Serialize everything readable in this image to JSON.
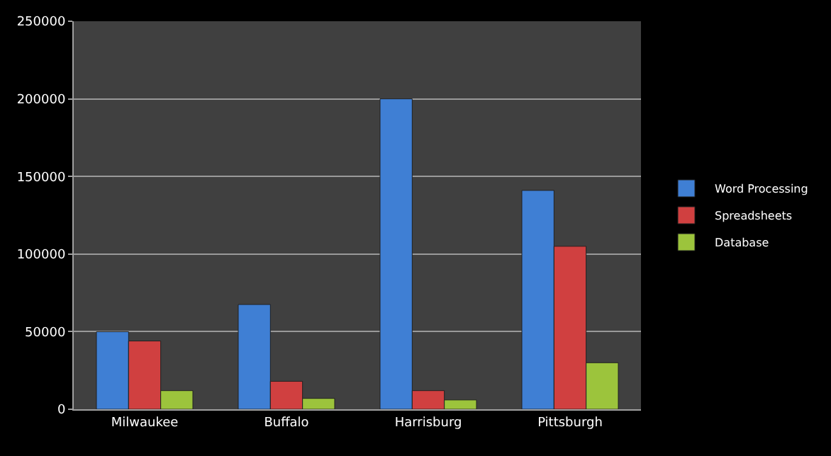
{
  "chart_data": {
    "type": "bar",
    "categories": [
      "Milwaukee",
      "Buffalo",
      "Harrisburg",
      "Pittsburgh"
    ],
    "series": [
      {
        "name": "Word Processing",
        "color": "#3f7fd4",
        "values": [
          50000,
          67500,
          200000,
          141000
        ]
      },
      {
        "name": "Spreadsheets",
        "color": "#d04040",
        "values": [
          44000,
          18000,
          12000,
          105000
        ]
      },
      {
        "name": "Database",
        "color": "#9cc43c",
        "values": [
          12000,
          7000,
          6000,
          30000
        ]
      }
    ],
    "ylim": [
      0,
      250000
    ],
    "yticks": [
      0,
      50000,
      100000,
      150000,
      200000,
      250000
    ],
    "grid": "y",
    "legend": "right"
  }
}
